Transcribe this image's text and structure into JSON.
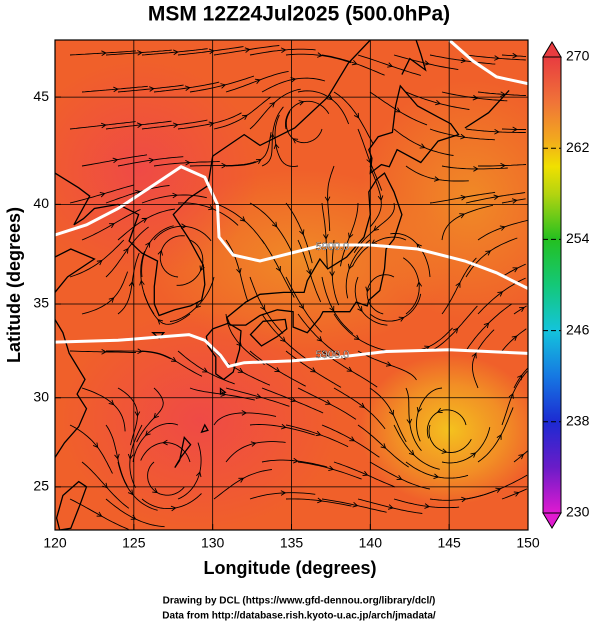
{
  "chart_data": {
    "type": "map",
    "title": "MSM 12Z24Jul2025 (500.0hPa)",
    "x_label": "Longitude (degrees)",
    "y_label": "Latitude  (degrees)",
    "xlim": [
      120,
      150
    ],
    "ylim": [
      22.5,
      47.5
    ],
    "xticks": [
      120,
      125,
      130,
      135,
      140,
      145,
      150
    ],
    "yticks": [
      25,
      30,
      35,
      40,
      45
    ],
    "projection": "mercator",
    "grid": true,
    "colorbar": {
      "lim": [
        230,
        270
      ],
      "ticks": [
        230,
        238,
        246,
        254,
        262,
        270
      ]
    },
    "contour_labels": [
      "5900.0",
      "5900.0"
    ]
  },
  "footer": [
    "Drawing by DCL (https://www.gfd-dennou.org/library/dcl/)",
    "Data from http://database.rish.kyoto-u.ac.jp/arch/jmadata/"
  ]
}
